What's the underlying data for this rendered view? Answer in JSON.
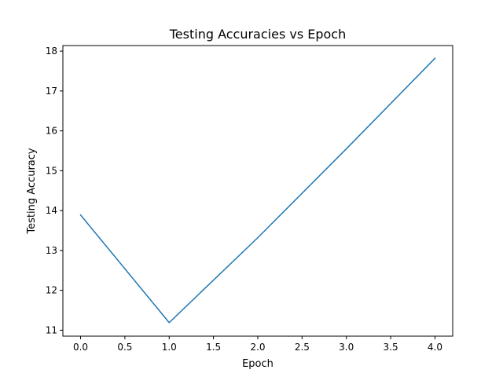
{
  "chart_data": {
    "type": "line",
    "title": "Testing Accuracies vs Epoch",
    "xlabel": "Epoch",
    "ylabel": "Testing Accuracy",
    "x": [
      0,
      1,
      2,
      3,
      4
    ],
    "series": [
      {
        "values": [
          13.89,
          11.19,
          13.32,
          15.55,
          17.82
        ]
      }
    ],
    "xlim": [
      -0.2,
      4.2
    ],
    "ylim": [
      10.85,
      18.14
    ],
    "xticks": [
      0.0,
      0.5,
      1.0,
      1.5,
      2.0,
      2.5,
      3.0,
      3.5,
      4.0
    ],
    "xtick_labels": [
      "0.0",
      "0.5",
      "1.0",
      "1.5",
      "2.0",
      "2.5",
      "3.0",
      "3.5",
      "4.0"
    ],
    "yticks": [
      11,
      12,
      13,
      14,
      15,
      16,
      17,
      18
    ],
    "ytick_labels": [
      "11",
      "12",
      "13",
      "14",
      "15",
      "16",
      "17",
      "18"
    ],
    "grid": false,
    "line_color": "#1f77b4"
  }
}
